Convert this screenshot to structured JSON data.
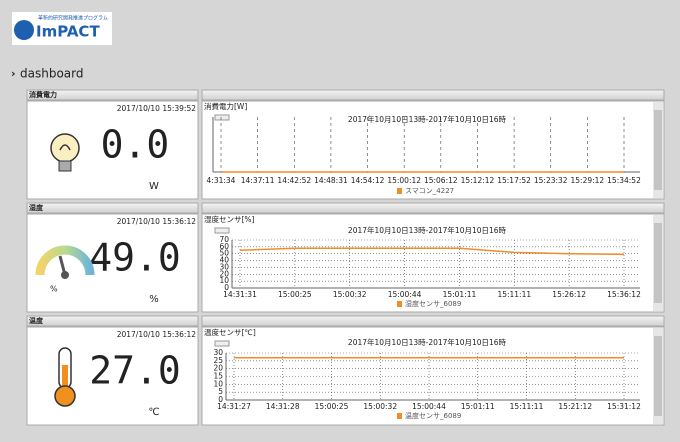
{
  "header": {
    "logo_tagline": "革新的研究開発推進プログラム",
    "logo_text": "ImPACT"
  },
  "nav": {
    "page": "dashboard"
  },
  "panels": [
    {
      "title": "消費電力",
      "timestamp": "2017/10/10 15:39:52",
      "value": "0.0",
      "unit": "W",
      "chart_data": {
        "type": "line",
        "title": "消費電力[W]",
        "subtitle": "2017年10月10日13時-2017年10月10日16時",
        "categories": [
          "4:31:34",
          "14:37:11",
          "14:42:52",
          "14:48:31",
          "14:54:12",
          "15:00:12",
          "15:06:12",
          "15:12:12",
          "15:17:52",
          "15:23:32",
          "15:29:12",
          "15:34:52"
        ],
        "series": [
          {
            "name": "スマコン_4227",
            "color": "#f28c28",
            "values": [
              0,
              0,
              0,
              0,
              0,
              0,
              0,
              0,
              0,
              0,
              0,
              0
            ]
          }
        ],
        "ylim": [
          0,
          1
        ],
        "grid": "dashed"
      }
    },
    {
      "title": "湿度",
      "timestamp": "2017/10/10 15:36:12",
      "value": "49.0",
      "unit": "%",
      "chart_data": {
        "type": "line",
        "title": "湿度センサ[%]",
        "subtitle": "2017年10月10日13時-2017年10月10日16時",
        "categories": [
          "14:31:31",
          "15:00:25",
          "15:00:32",
          "15:00:44",
          "15:01:11",
          "15:11:11",
          "15:26:12",
          "15:36:12"
        ],
        "series": [
          {
            "name": "湿度センサ_6089",
            "color": "#f28c28",
            "values": [
              55,
              58,
              58,
              58,
              58,
              52,
              50,
              49
            ]
          }
        ],
        "ylim": [
          0,
          70
        ],
        "yticks": [
          0,
          10,
          20,
          30,
          40,
          50,
          60,
          70
        ],
        "grid": "dotted"
      }
    },
    {
      "title": "温度",
      "timestamp": "2017/10/10 15:36:12",
      "value": "27.0",
      "unit": "℃",
      "chart_data": {
        "type": "line",
        "title": "温度センサ[℃]",
        "subtitle": "2017年10月10日13時-2017年10月10日16時",
        "categories": [
          "14:31:27",
          "14:31:28",
          "15:00:25",
          "15:00:32",
          "15:00:44",
          "15:01:11",
          "15:11:11",
          "15:21:12",
          "15:31:12"
        ],
        "series": [
          {
            "name": "温度センサ_6089",
            "color": "#f28c28",
            "values": [
              27,
              27,
              27,
              27,
              27,
              27,
              27,
              27,
              27
            ]
          }
        ],
        "ylim": [
          0,
          30
        ],
        "yticks": [
          0,
          5,
          10,
          15,
          20,
          25,
          30
        ],
        "grid": "dotted"
      }
    }
  ]
}
